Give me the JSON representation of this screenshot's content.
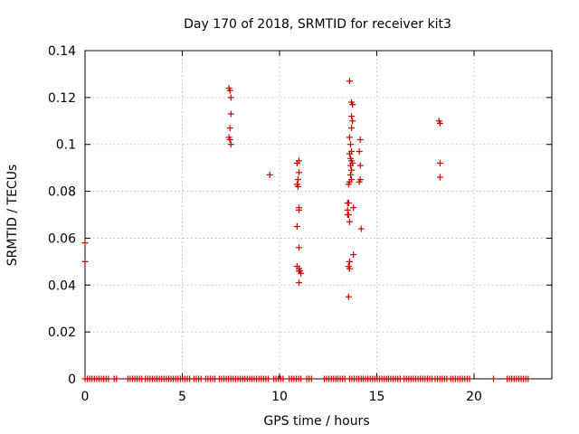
{
  "chart_data": {
    "type": "scatter",
    "title": "Day 170 of 2018, SRMTID for receiver kit3",
    "xlabel": "GPS time / hours",
    "ylabel": "SRMTID / TECUs",
    "xlim": [
      0,
      24
    ],
    "ylim": [
      0,
      0.14
    ],
    "xticks": [
      0,
      5,
      10,
      15,
      20
    ],
    "xtick_labels": [
      "0",
      "5",
      "10",
      "15",
      "20"
    ],
    "yticks": [
      0,
      0.02,
      0.04,
      0.06,
      0.08,
      0.1,
      0.12,
      0.14
    ],
    "ytick_labels": [
      "0",
      "0.02",
      "0.04",
      "0.06",
      "0.08",
      "0.1",
      "0.12",
      "0.14"
    ],
    "grid": true,
    "marker": "+",
    "marker_color": "#cc0000",
    "series": [
      {
        "name": "SRMTID",
        "points": [
          [
            0.0,
            0.058
          ],
          [
            0.0,
            0.05
          ],
          [
            7.4,
            0.124
          ],
          [
            7.45,
            0.123
          ],
          [
            7.5,
            0.12
          ],
          [
            7.5,
            0.113
          ],
          [
            7.45,
            0.107
          ],
          [
            7.4,
            0.103
          ],
          [
            7.45,
            0.102
          ],
          [
            7.5,
            0.1
          ],
          [
            9.5,
            0.087
          ],
          [
            10.9,
            0.092
          ],
          [
            11.0,
            0.093
          ],
          [
            11.0,
            0.088
          ],
          [
            10.95,
            0.085
          ],
          [
            10.9,
            0.083
          ],
          [
            10.95,
            0.082
          ],
          [
            11.0,
            0.073
          ],
          [
            11.0,
            0.072
          ],
          [
            10.9,
            0.065
          ],
          [
            11.0,
            0.056
          ],
          [
            10.9,
            0.048
          ],
          [
            11.0,
            0.047
          ],
          [
            11.0,
            0.046
          ],
          [
            11.1,
            0.045
          ],
          [
            11.05,
            0.046
          ],
          [
            11.0,
            0.041
          ],
          [
            13.6,
            0.127
          ],
          [
            13.7,
            0.118
          ],
          [
            13.75,
            0.117
          ],
          [
            13.7,
            0.112
          ],
          [
            13.75,
            0.11
          ],
          [
            13.7,
            0.107
          ],
          [
            13.6,
            0.103
          ],
          [
            13.65,
            0.1
          ],
          [
            13.7,
            0.097
          ],
          [
            13.6,
            0.096
          ],
          [
            13.65,
            0.094
          ],
          [
            13.7,
            0.093
          ],
          [
            13.75,
            0.092
          ],
          [
            13.65,
            0.091
          ],
          [
            13.7,
            0.089
          ],
          [
            13.65,
            0.087
          ],
          [
            13.7,
            0.085
          ],
          [
            13.6,
            0.084
          ],
          [
            13.55,
            0.083
          ],
          [
            13.5,
            0.075
          ],
          [
            13.55,
            0.075
          ],
          [
            13.8,
            0.073
          ],
          [
            13.5,
            0.072
          ],
          [
            13.55,
            0.07
          ],
          [
            13.5,
            0.07
          ],
          [
            13.6,
            0.067
          ],
          [
            13.8,
            0.053
          ],
          [
            13.6,
            0.05
          ],
          [
            13.55,
            0.048
          ],
          [
            13.6,
            0.047
          ],
          [
            13.55,
            0.035
          ],
          [
            14.15,
            0.102
          ],
          [
            14.1,
            0.097
          ],
          [
            14.15,
            0.091
          ],
          [
            14.15,
            0.085
          ],
          [
            14.1,
            0.084
          ],
          [
            14.2,
            0.064
          ],
          [
            18.2,
            0.11
          ],
          [
            18.25,
            0.109
          ],
          [
            18.25,
            0.092
          ],
          [
            18.25,
            0.086
          ]
        ],
        "zero_runs": [
          [
            0.0,
            1.2
          ],
          [
            1.5,
            1.7
          ],
          [
            2.2,
            3.0
          ],
          [
            3.1,
            5.4
          ],
          [
            5.6,
            6.0
          ],
          [
            6.2,
            6.7
          ],
          [
            6.9,
            9.2
          ],
          [
            9.3,
            9.5
          ],
          [
            9.7,
            10.2
          ],
          [
            10.5,
            11.2
          ],
          [
            11.4,
            11.7
          ],
          [
            12.3,
            12.9
          ],
          [
            13.0,
            13.4
          ],
          [
            13.6,
            14.2
          ],
          [
            14.3,
            15.5
          ],
          [
            15.6,
            16.2
          ],
          [
            16.4,
            17.9
          ],
          [
            18.0,
            18.7
          ],
          [
            18.8,
            19.6
          ],
          [
            19.65,
            19.85
          ],
          [
            21.0,
            21.05
          ],
          [
            21.7,
            22.8
          ]
        ],
        "zero_step": 0.12
      }
    ]
  }
}
